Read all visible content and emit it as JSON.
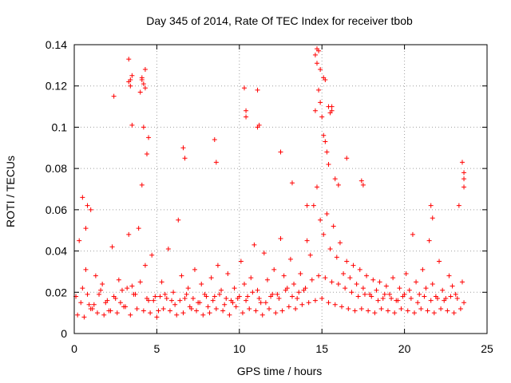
{
  "chart_data": {
    "type": "scatter",
    "title": "Day 345 of 2014, Rate Of TEC Index for receiver tbob",
    "xlabel": "GPS time / hours",
    "ylabel": "ROTI / TECUs",
    "xlim": [
      0,
      25
    ],
    "ylim": [
      0,
      0.14
    ],
    "xticks": [
      0,
      5,
      10,
      15,
      20,
      25
    ],
    "xtick_labels": [
      "0",
      "5",
      "10",
      "15",
      "20",
      "25"
    ],
    "yticks": [
      0,
      0.02,
      0.04,
      0.06,
      0.08,
      0.1,
      0.12,
      0.14
    ],
    "ytick_labels": [
      "0",
      "0.02",
      "0.04",
      "0.06",
      "0.08",
      "0.1",
      "0.12",
      "0.14"
    ],
    "grid": true,
    "marker": "+",
    "series": [
      {
        "name": "ROTI",
        "color": "#ff0000",
        "x": [
          0.1,
          0.3,
          0.5,
          0.7,
          0.9,
          1.1,
          1.3,
          1.5,
          1.7,
          1.9,
          2.1,
          2.3,
          2.5,
          2.7,
          2.9,
          3.1,
          3.3,
          3.5,
          3.7,
          3.9,
          4.1,
          4.3,
          4.5,
          4.7,
          4.9,
          5.1,
          5.3,
          5.5,
          5.7,
          5.9,
          6.1,
          6.3,
          6.5,
          6.7,
          6.9,
          7.1,
          7.3,
          7.5,
          7.7,
          7.9,
          8.1,
          8.3,
          8.5,
          8.7,
          8.9,
          9.1,
          9.3,
          9.5,
          9.7,
          9.9,
          10.1,
          10.3,
          10.5,
          10.7,
          10.9,
          11.1,
          11.3,
          11.5,
          11.7,
          11.9,
          12.1,
          12.3,
          12.5,
          12.7,
          12.9,
          13.1,
          13.3,
          13.5,
          13.7,
          13.9,
          14.1,
          14.3,
          14.5,
          14.7,
          14.9,
          15.1,
          15.3,
          15.5,
          15.7,
          15.9,
          16.1,
          16.3,
          16.5,
          16.7,
          16.9,
          17.1,
          17.3,
          17.5,
          17.7,
          17.9,
          18.1,
          18.3,
          18.5,
          18.7,
          18.9,
          19.1,
          19.3,
          19.5,
          19.7,
          19.9,
          20.1,
          20.3,
          20.5,
          20.7,
          20.9,
          21.1,
          21.3,
          21.5,
          21.7,
          21.9,
          22.1,
          22.3,
          22.5,
          22.7,
          22.9,
          23.1,
          23.3,
          23.5,
          0.2,
          0.6,
          1.0,
          1.4,
          1.8,
          2.2,
          2.6,
          3.0,
          3.4,
          3.8,
          4.2,
          4.6,
          5.0,
          5.4,
          5.8,
          6.2,
          6.6,
          7.0,
          7.4,
          7.8,
          8.2,
          8.6,
          9.0,
          9.4,
          9.8,
          10.2,
          10.6,
          11.0,
          11.4,
          11.8,
          12.2,
          12.6,
          13.0,
          13.4,
          13.8,
          14.2,
          14.6,
          15.0,
          15.4,
          15.8,
          16.2,
          16.6,
          17.0,
          17.4,
          17.8,
          18.2,
          18.6,
          19.0,
          19.4,
          19.8,
          20.2,
          20.6,
          21.0,
          21.4,
          21.8,
          22.2,
          22.6,
          23.0,
          23.4,
          0.4,
          0.8,
          1.2,
          1.6,
          2.0,
          2.4,
          2.8,
          3.2,
          3.6,
          4.0,
          4.4,
          4.8,
          5.2,
          5.6,
          6.0,
          6.4,
          6.8,
          7.2,
          7.6,
          8.0,
          8.4,
          8.8,
          9.2,
          9.6,
          10.0,
          10.4,
          10.8,
          11.2,
          11.6,
          12.0,
          12.4,
          12.8,
          13.2,
          13.6,
          14.0,
          14.4,
          14.8,
          15.2,
          15.6,
          16.0,
          16.4,
          16.8,
          17.2,
          17.6,
          18.0,
          18.4,
          18.8,
          19.2,
          19.6,
          20.0,
          20.4,
          20.8,
          21.2,
          21.6,
          22.0,
          22.4,
          22.8,
          23.2,
          23.6,
          0.5,
          0.7,
          0.8,
          1.0,
          2.4,
          3.3,
          3.4,
          3.5,
          4.0,
          4.1,
          4.2,
          4.3,
          4.4,
          6.6,
          6.7,
          8.5,
          8.6,
          10.3,
          10.4,
          11.1,
          11.2,
          12.5,
          13.2,
          14.1,
          14.6,
          14.7,
          14.8,
          14.9,
          15.0,
          15.1,
          15.2,
          15.3,
          15.4,
          15.6,
          15.8,
          16.0,
          16.5,
          17.4,
          17.5,
          21.6,
          21.7,
          23.5,
          23.6,
          3.3,
          3.4,
          4.1,
          4.2,
          4.3,
          14.7,
          14.8,
          14.9,
          15.1,
          15.2,
          15.4,
          15.5,
          11.1,
          10.4,
          4.5,
          3.5,
          23.6,
          23.6,
          14.6,
          15.6
        ],
        "y": [
          0.018,
          0.045,
          0.022,
          0.031,
          0.014,
          0.012,
          0.028,
          0.019,
          0.024,
          0.015,
          0.011,
          0.042,
          0.017,
          0.026,
          0.021,
          0.013,
          0.048,
          0.023,
          0.019,
          0.051,
          0.072,
          0.033,
          0.016,
          0.038,
          0.018,
          0.011,
          0.025,
          0.019,
          0.041,
          0.016,
          0.014,
          0.055,
          0.028,
          0.017,
          0.022,
          0.012,
          0.031,
          0.015,
          0.024,
          0.019,
          0.013,
          0.027,
          0.018,
          0.033,
          0.021,
          0.014,
          0.029,
          0.016,
          0.022,
          0.017,
          0.035,
          0.024,
          0.018,
          0.027,
          0.043,
          0.021,
          0.015,
          0.039,
          0.026,
          0.018,
          0.031,
          0.019,
          0.046,
          0.028,
          0.022,
          0.036,
          0.024,
          0.017,
          0.029,
          0.021,
          0.045,
          0.038,
          0.062,
          0.071,
          0.055,
          0.048,
          0.058,
          0.041,
          0.052,
          0.037,
          0.044,
          0.029,
          0.035,
          0.027,
          0.033,
          0.024,
          0.031,
          0.022,
          0.028,
          0.019,
          0.026,
          0.021,
          0.025,
          0.017,
          0.023,
          0.019,
          0.027,
          0.016,
          0.022,
          0.018,
          0.029,
          0.021,
          0.048,
          0.025,
          0.019,
          0.031,
          0.022,
          0.045,
          0.024,
          0.018,
          0.035,
          0.021,
          0.017,
          0.028,
          0.023,
          0.019,
          0.062,
          0.025,
          0.009,
          0.008,
          0.012,
          0.01,
          0.009,
          0.011,
          0.01,
          0.013,
          0.009,
          0.012,
          0.011,
          0.01,
          0.008,
          0.012,
          0.011,
          0.009,
          0.01,
          0.013,
          0.011,
          0.009,
          0.01,
          0.012,
          0.011,
          0.009,
          0.013,
          0.01,
          0.012,
          0.011,
          0.009,
          0.012,
          0.01,
          0.011,
          0.013,
          0.012,
          0.014,
          0.015,
          0.016,
          0.017,
          0.015,
          0.014,
          0.013,
          0.012,
          0.011,
          0.012,
          0.011,
          0.01,
          0.012,
          0.011,
          0.01,
          0.012,
          0.011,
          0.01,
          0.012,
          0.011,
          0.01,
          0.012,
          0.011,
          0.01,
          0.012,
          0.015,
          0.019,
          0.014,
          0.021,
          0.016,
          0.018,
          0.015,
          0.022,
          0.019,
          0.025,
          0.017,
          0.016,
          0.018,
          0.017,
          0.02,
          0.016,
          0.019,
          0.017,
          0.015,
          0.018,
          0.016,
          0.019,
          0.017,
          0.015,
          0.018,
          0.016,
          0.02,
          0.017,
          0.015,
          0.019,
          0.017,
          0.021,
          0.018,
          0.02,
          0.022,
          0.026,
          0.028,
          0.027,
          0.025,
          0.024,
          0.022,
          0.02,
          0.018,
          0.019,
          0.018,
          0.016,
          0.019,
          0.017,
          0.016,
          0.019,
          0.017,
          0.015,
          0.018,
          0.016,
          0.017,
          0.016,
          0.018,
          0.017,
          0.015,
          0.066,
          0.051,
          0.062,
          0.06,
          0.115,
          0.133,
          0.123,
          0.125,
          0.117,
          0.123,
          0.1,
          0.128,
          0.087,
          0.09,
          0.085,
          0.094,
          0.083,
          0.119,
          0.108,
          0.118,
          0.101,
          0.088,
          0.073,
          0.062,
          0.135,
          0.131,
          0.118,
          0.112,
          0.105,
          0.096,
          0.093,
          0.088,
          0.082,
          0.108,
          0.075,
          0.072,
          0.085,
          0.074,
          0.072,
          0.062,
          0.056,
          0.083,
          0.078,
          0.122,
          0.12,
          0.124,
          0.121,
          0.119,
          0.138,
          0.137,
          0.128,
          0.124,
          0.123,
          0.11,
          0.107,
          0.1,
          0.105,
          0.095,
          0.101,
          0.075,
          0.071,
          0.108,
          0.11
        ]
      }
    ]
  }
}
